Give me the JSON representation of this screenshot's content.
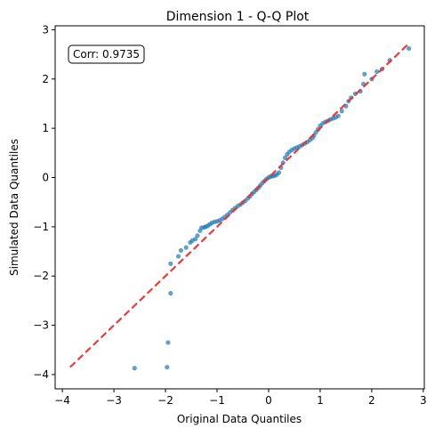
{
  "chart_data": {
    "type": "scatter",
    "title": "Dimension 1 - Q-Q Plot",
    "xlabel": "Original Data Quantiles",
    "ylabel": "Simulated Data Quantiles",
    "xlim": [
      -4.14,
      3.02
    ],
    "ylim": [
      -4.29,
      3.08
    ],
    "xticks": [
      -4,
      -3,
      -2,
      -1,
      0,
      1,
      2,
      3
    ],
    "yticks": [
      -4,
      -3,
      -2,
      -1,
      0,
      1,
      2,
      3
    ],
    "annotation": "Corr: 0.9735",
    "annotation_placement": "top-left",
    "grid": false,
    "reference_line": {
      "label": "",
      "color": "#e8312f",
      "style": "dashed",
      "x": [
        -3.85,
        2.7
      ],
      "y": [
        -3.85,
        2.7
      ]
    },
    "series": [
      {
        "color": "#1f77b4",
        "points": [
          [
            -2.6,
            -3.87
          ],
          [
            -1.97,
            -3.85
          ],
          [
            -1.95,
            -3.35
          ],
          [
            -1.9,
            -2.35
          ],
          [
            -1.9,
            -1.75
          ],
          [
            -1.75,
            -1.6
          ],
          [
            -1.7,
            -1.48
          ],
          [
            -1.6,
            -1.42
          ],
          [
            -1.52,
            -1.32
          ],
          [
            -1.48,
            -1.28
          ],
          [
            -1.42,
            -1.25
          ],
          [
            -1.38,
            -1.18
          ],
          [
            -1.33,
            -1.08
          ],
          [
            -1.3,
            -1.02
          ],
          [
            -1.25,
            -1.01
          ],
          [
            -1.22,
            -1.0
          ],
          [
            -1.18,
            -0.98
          ],
          [
            -1.14,
            -0.95
          ],
          [
            -1.1,
            -0.92
          ],
          [
            -1.05,
            -0.9
          ],
          [
            -1.0,
            -0.89
          ],
          [
            -0.95,
            -0.87
          ],
          [
            -0.9,
            -0.84
          ],
          [
            -0.85,
            -0.8
          ],
          [
            -0.8,
            -0.76
          ],
          [
            -0.75,
            -0.71
          ],
          [
            -0.7,
            -0.66
          ],
          [
            -0.65,
            -0.62
          ],
          [
            -0.6,
            -0.58
          ],
          [
            -0.55,
            -0.55
          ],
          [
            -0.5,
            -0.51
          ],
          [
            -0.45,
            -0.47
          ],
          [
            -0.4,
            -0.42
          ],
          [
            -0.36,
            -0.38
          ],
          [
            -0.32,
            -0.33
          ],
          [
            -0.28,
            -0.29
          ],
          [
            -0.24,
            -0.25
          ],
          [
            -0.2,
            -0.21
          ],
          [
            -0.16,
            -0.16
          ],
          [
            -0.12,
            -0.11
          ],
          [
            -0.08,
            -0.07
          ],
          [
            -0.04,
            -0.03
          ],
          [
            0.0,
            0.0
          ],
          [
            0.04,
            0.02
          ],
          [
            0.08,
            0.03
          ],
          [
            0.12,
            0.04
          ],
          [
            0.16,
            0.06
          ],
          [
            0.2,
            0.1
          ],
          [
            0.24,
            0.2
          ],
          [
            0.28,
            0.3
          ],
          [
            0.32,
            0.4
          ],
          [
            0.36,
            0.47
          ],
          [
            0.4,
            0.52
          ],
          [
            0.45,
            0.56
          ],
          [
            0.5,
            0.59
          ],
          [
            0.55,
            0.61
          ],
          [
            0.6,
            0.63
          ],
          [
            0.65,
            0.66
          ],
          [
            0.7,
            0.69
          ],
          [
            0.75,
            0.72
          ],
          [
            0.8,
            0.76
          ],
          [
            0.85,
            0.8
          ],
          [
            0.88,
            0.85
          ],
          [
            0.92,
            0.92
          ],
          [
            0.96,
            0.98
          ],
          [
            1.0,
            1.05
          ],
          [
            1.05,
            1.1
          ],
          [
            1.1,
            1.13
          ],
          [
            1.15,
            1.15
          ],
          [
            1.2,
            1.18
          ],
          [
            1.25,
            1.2
          ],
          [
            1.3,
            1.22
          ],
          [
            1.35,
            1.25
          ],
          [
            1.42,
            1.35
          ],
          [
            1.5,
            1.45
          ],
          [
            1.55,
            1.55
          ],
          [
            1.6,
            1.62
          ],
          [
            1.68,
            1.7
          ],
          [
            1.78,
            1.75
          ],
          [
            1.84,
            1.9
          ],
          [
            1.86,
            2.1
          ],
          [
            2.0,
            2.0
          ],
          [
            2.1,
            2.15
          ],
          [
            2.2,
            2.2
          ],
          [
            2.35,
            2.38
          ],
          [
            2.72,
            2.62
          ]
        ]
      }
    ]
  }
}
